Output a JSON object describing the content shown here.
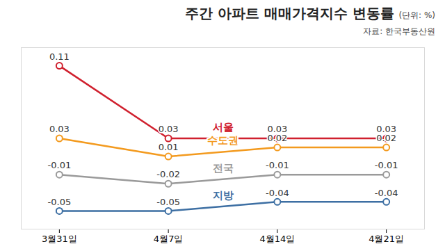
{
  "chart_data": {
    "type": "line",
    "title": "주간 아파트 매매가격지수 변동률",
    "subtitle": "(단위: %)",
    "source": "자료: 한국부동산원",
    "categories": [
      "3월31일",
      "4월7일",
      "4월14일",
      "4월21일"
    ],
    "series": [
      {
        "name": "서울",
        "color": "#d0202e",
        "values": [
          0.11,
          0.03,
          0.03,
          0.03
        ]
      },
      {
        "name": "수도권",
        "color": "#f39a1e",
        "values": [
          0.03,
          0.01,
          0.02,
          0.02
        ]
      },
      {
        "name": "전국",
        "color": "#9a9a9a",
        "values": [
          -0.01,
          -0.02,
          -0.01,
          -0.01
        ]
      },
      {
        "name": "지방",
        "color": "#3d6fa3",
        "values": [
          -0.05,
          -0.05,
          -0.04,
          -0.04
        ]
      }
    ],
    "ylim": [
      -0.07,
      0.13
    ],
    "yticks": [],
    "tick_labels": "x",
    "data_labels": true,
    "grid": false,
    "marker": "circle"
  }
}
